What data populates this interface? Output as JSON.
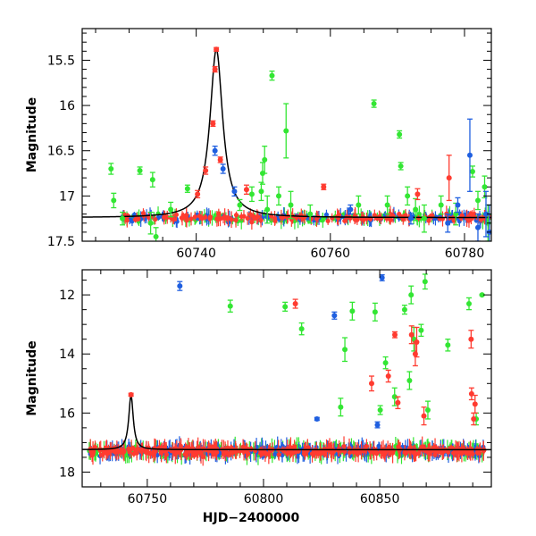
{
  "colors": {
    "green": "#33e633",
    "blue": "#1f5fe0",
    "red": "#ff3b30",
    "model": "#000000"
  },
  "chart_data": [
    {
      "type": "scatter",
      "title": "",
      "xlabel": "",
      "ylabel": "Magnitude",
      "xlim": [
        60723,
        60784
      ],
      "ylim": [
        17.5,
        15.15
      ],
      "y_inverted": true,
      "xticks": [
        60740,
        60760,
        60780
      ],
      "yticks": [
        15.5,
        16,
        16.5,
        17,
        17.5
      ],
      "xtick_labels": [
        "60740",
        "60760",
        "60780"
      ],
      "ytick_labels": [
        "15.5",
        "16",
        "16.5",
        "17",
        "17.5"
      ],
      "grid": false,
      "model_curve": {
        "t0": 60743.0,
        "base": 17.24,
        "peak": 15.38,
        "width": 1.15
      },
      "series": [
        {
          "color_key": "green",
          "marker": "circle",
          "points": [
            [
              60727.3,
              16.7,
              0.06
            ],
            [
              60727.7,
              17.05,
              0.08
            ],
            [
              60729.0,
              17.25,
              0.07
            ],
            [
              60731.6,
              16.72,
              0.04
            ],
            [
              60733.2,
              17.3,
              0.12
            ],
            [
              60733.5,
              16.82,
              0.08
            ],
            [
              60734.0,
              17.45,
              0.1
            ],
            [
              60736.2,
              17.15,
              0.08
            ],
            [
              60738.7,
              16.92,
              0.04
            ],
            [
              60746.5,
              17.1,
              0.06
            ],
            [
              60748.3,
              16.98,
              0.08
            ],
            [
              60749.7,
              16.95,
              0.1
            ],
            [
              60749.9,
              16.75,
              0.12
            ],
            [
              60750.2,
              16.6,
              0.15
            ],
            [
              60750.6,
              17.15,
              0.15
            ],
            [
              60751.3,
              15.67,
              0.05
            ],
            [
              60752.3,
              17.0,
              0.1
            ],
            [
              60753.4,
              16.28,
              0.3
            ],
            [
              60754.1,
              17.1,
              0.15
            ],
            [
              60757.0,
              17.2,
              0.1
            ],
            [
              60764.2,
              17.1,
              0.1
            ],
            [
              60766.5,
              15.98,
              0.04
            ],
            [
              60768.5,
              17.1,
              0.1
            ],
            [
              60770.3,
              16.32,
              0.04
            ],
            [
              60770.5,
              16.67,
              0.04
            ],
            [
              60771.5,
              17.0,
              0.1
            ],
            [
              60772.7,
              17.15,
              0.12
            ],
            [
              60774.0,
              17.25,
              0.15
            ],
            [
              60776.5,
              17.1,
              0.1
            ],
            [
              60778.7,
              17.2,
              0.12
            ],
            [
              60781.2,
              16.73,
              0.06
            ],
            [
              60782.0,
              17.05,
              0.1
            ],
            [
              60783.0,
              16.9,
              0.12
            ],
            [
              60783.5,
              17.3,
              0.2
            ]
          ]
        },
        {
          "color_key": "blue",
          "marker": "circle",
          "points": [
            [
              60742.8,
              16.5,
              0.05
            ],
            [
              60744.0,
              16.7,
              0.05
            ],
            [
              60745.7,
              16.95,
              0.05
            ],
            [
              60763.0,
              17.15,
              0.05
            ],
            [
              60772.0,
              17.25,
              0.06
            ],
            [
              60777.5,
              17.3,
              0.1
            ],
            [
              60779.0,
              17.1,
              0.08
            ],
            [
              60780.8,
              16.55,
              0.4
            ],
            [
              60782.0,
              17.35,
              0.15
            ],
            [
              60783.2,
              17.2,
              0.25
            ],
            [
              60783.7,
              17.4,
              0.3
            ]
          ]
        },
        {
          "color_key": "red",
          "marker": "circle",
          "points": [
            [
              60740.2,
              16.98,
              0.04
            ],
            [
              60741.4,
              16.72,
              0.04
            ],
            [
              60742.5,
              16.2,
              0.03
            ],
            [
              60742.8,
              15.6,
              0.03
            ],
            [
              60743.0,
              15.38,
              0.02
            ],
            [
              60743.6,
              16.6,
              0.03
            ],
            [
              60747.5,
              16.93,
              0.05
            ],
            [
              60759.0,
              16.9,
              0.03
            ],
            [
              60773.0,
              16.98,
              0.06
            ],
            [
              60777.7,
              16.8,
              0.25
            ]
          ]
        }
      ],
      "baseline_band": {
        "y_center": 17.24,
        "y_scatter": 0.06,
        "x_start": 60729,
        "x_end": 60784
      }
    },
    {
      "type": "scatter",
      "title": "",
      "xlabel": "HJD−2400000",
      "ylabel": "Magnitude",
      "xlim": [
        60722,
        60898
      ],
      "ylim": [
        18.5,
        11.15
      ],
      "y_inverted": true,
      "xticks": [
        60750,
        60800,
        60850
      ],
      "yticks": [
        12,
        14,
        16,
        18
      ],
      "xtick_labels": [
        "60750",
        "60800",
        "60850"
      ],
      "ytick_labels": [
        "12",
        "14",
        "16",
        "18"
      ],
      "grid": false,
      "model_curve": {
        "t0": 60743.0,
        "base": 17.24,
        "peak": 15.38,
        "width": 1.15
      },
      "series": [
        {
          "color_key": "green",
          "marker": "circle",
          "points": [
            [
              60785.7,
              12.38,
              0.2
            ],
            [
              60809.3,
              12.4,
              0.15
            ],
            [
              60816.4,
              13.15,
              0.2
            ],
            [
              60835.0,
              13.85,
              0.4
            ],
            [
              60838.2,
              12.55,
              0.3
            ],
            [
              60848.0,
              12.58,
              0.3
            ],
            [
              60852.5,
              14.3,
              0.2
            ],
            [
              60860.7,
              12.5,
              0.15
            ],
            [
              60863.5,
              12.0,
              0.3
            ],
            [
              60864.7,
              13.5,
              0.4
            ],
            [
              60867.8,
              13.2,
              0.2
            ],
            [
              60869.5,
              11.55,
              0.25
            ],
            [
              60879.3,
              13.7,
              0.2
            ],
            [
              60888.4,
              12.3,
              0.2
            ],
            [
              60894.0,
              12.0,
              0.02
            ],
            [
              60862.8,
              14.9,
              0.3
            ],
            [
              60856.4,
              15.45,
              0.3
            ],
            [
              60850.2,
              15.9,
              0.15
            ],
            [
              60833.2,
              15.8,
              0.3
            ],
            [
              60870.7,
              15.9,
              0.3
            ],
            [
              60891.5,
              16.2,
              0.2
            ]
          ]
        },
        {
          "color_key": "blue",
          "marker": "circle",
          "points": [
            [
              60764.0,
              11.7,
              0.15
            ],
            [
              60830.5,
              12.7,
              0.12
            ],
            [
              60851.0,
              11.42,
              0.1
            ],
            [
              60823.0,
              16.2,
              0.05
            ],
            [
              60849.0,
              16.4,
              0.1
            ]
          ]
        },
        {
          "color_key": "red",
          "marker": "circle",
          "points": [
            [
              60743.0,
              15.38,
              0.05
            ],
            [
              60813.7,
              12.3,
              0.15
            ],
            [
              60856.5,
              13.35,
              0.1
            ],
            [
              60846.5,
              15.0,
              0.25
            ],
            [
              60853.7,
              14.75,
              0.2
            ],
            [
              60857.8,
              15.65,
              0.2
            ],
            [
              60863.7,
              13.35,
              0.3
            ],
            [
              60865.3,
              14.0,
              0.4
            ],
            [
              60865.9,
              13.6,
              0.5
            ],
            [
              60889.3,
              13.5,
              0.3
            ],
            [
              60889.5,
              15.35,
              0.2
            ],
            [
              60890.4,
              16.2,
              0.2
            ],
            [
              60891.0,
              15.7,
              0.3
            ],
            [
              60869.0,
              16.1,
              0.3
            ]
          ]
        }
      ],
      "baseline_band": {
        "y_center": 17.28,
        "y_scatter": 0.22,
        "x_start": 60725,
        "x_end": 60895
      }
    }
  ]
}
